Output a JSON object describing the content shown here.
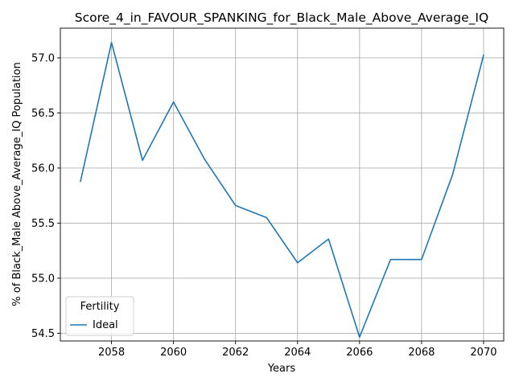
{
  "chart_data": {
    "type": "line",
    "title": "Score_4_in_FAVOUR_SPANKING_for_Black_Male_Above_Average_IQ",
    "xlabel": "Years",
    "ylabel": "% of Black_Male Above_Average_IQ Population",
    "x": [
      2057,
      2058,
      2059,
      2060,
      2061,
      2062,
      2063,
      2064,
      2065,
      2066,
      2067,
      2068,
      2069,
      2070
    ],
    "series": [
      {
        "name": "Ideal",
        "color": "#1f77b4",
        "values": [
          55.88,
          57.14,
          56.07,
          56.6,
          56.08,
          55.66,
          55.55,
          55.14,
          55.355,
          54.465,
          55.17,
          55.17,
          55.94,
          57.025
        ]
      }
    ],
    "xlim": [
      2056.35,
      2070.65
    ],
    "ylim": [
      54.43,
      57.27
    ],
    "xticks": [
      2058,
      2060,
      2062,
      2064,
      2066,
      2068,
      2070
    ],
    "yticks": [
      54.5,
      55.0,
      55.5,
      56.0,
      56.5,
      57.0
    ],
    "yticklabels": [
      "54.5",
      "55.0",
      "55.5",
      "56.0",
      "56.5",
      "57.0"
    ],
    "grid": true,
    "legend": {
      "title": "Fertility",
      "placement": "lower-left"
    }
  }
}
